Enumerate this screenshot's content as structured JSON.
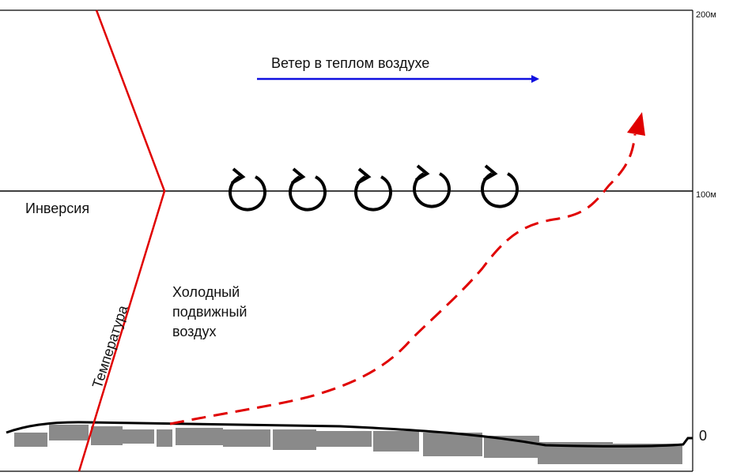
{
  "scale": {
    "top": "200м",
    "middle": "100м",
    "bottom": "0"
  },
  "labels": {
    "wind": "Ветер в теплом воздухе",
    "inversion": "Инверсия",
    "temperature": "Температура",
    "cold_air": [
      "Холодный",
      "подвижный",
      "воздух"
    ]
  }
}
